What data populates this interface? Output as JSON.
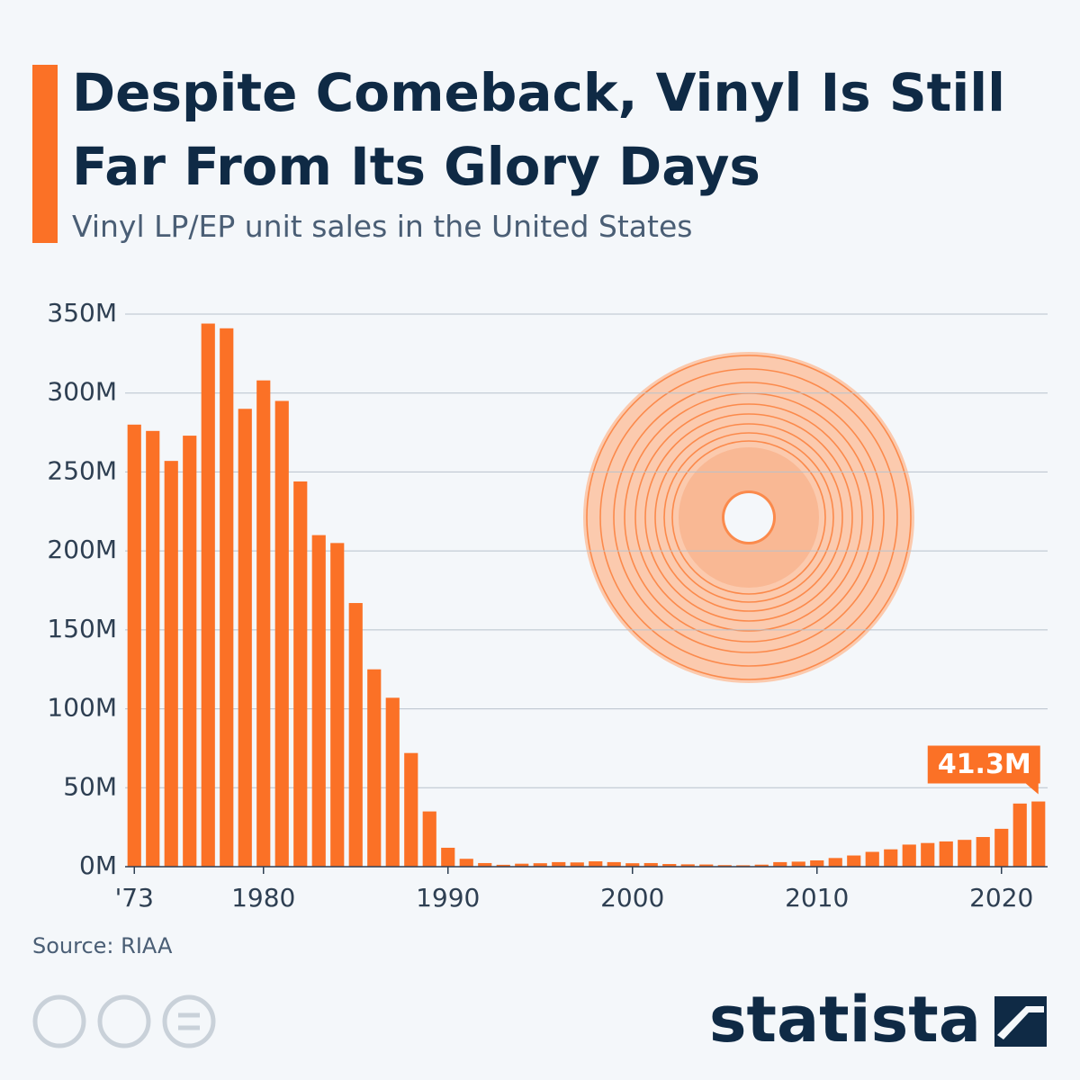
{
  "chart_data": {
    "type": "bar",
    "title": "Despite Comeback, Vinyl Is Still Far From Its Glory Days",
    "subtitle": "Vinyl LP/EP unit sales in the United States",
    "source": "Source: RIAA",
    "brand": "statista",
    "color": "#fb7126",
    "x": [
      1973,
      1974,
      1975,
      1976,
      1977,
      1978,
      1979,
      1980,
      1981,
      1982,
      1983,
      1984,
      1985,
      1986,
      1987,
      1988,
      1989,
      1990,
      1991,
      1992,
      1993,
      1994,
      1995,
      1996,
      1997,
      1998,
      1999,
      2000,
      2001,
      2002,
      2003,
      2004,
      2005,
      2006,
      2007,
      2008,
      2009,
      2010,
      2011,
      2012,
      2013,
      2014,
      2015,
      2016,
      2017,
      2018,
      2019,
      2020,
      2021,
      2022
    ],
    "values": [
      280,
      276,
      257,
      273,
      344,
      341,
      290,
      308,
      295,
      244,
      210,
      205,
      167,
      125,
      107,
      72,
      35,
      12,
      5,
      2.3,
      1.2,
      1.9,
      2.2,
      2.9,
      2.7,
      3.4,
      2.9,
      2.2,
      2.3,
      1.7,
      1.5,
      1.4,
      1.0,
      0.9,
      1.3,
      2.9,
      3.2,
      4.0,
      5.5,
      7.1,
      9.4,
      11,
      14,
      15,
      16,
      17,
      18.8,
      24,
      40,
      41.3
    ],
    "value_labels": [
      null,
      null,
      null,
      null,
      null,
      null,
      null,
      null,
      null,
      null,
      null,
      null,
      null,
      null,
      null,
      null,
      null,
      null,
      null,
      null,
      null,
      null,
      null,
      null,
      null,
      null,
      null,
      null,
      null,
      null,
      null,
      null,
      null,
      null,
      null,
      null,
      null,
      null,
      null,
      null,
      null,
      null,
      null,
      null,
      null,
      null,
      null,
      null,
      null,
      "41.3M"
    ],
    "xlim": [
      1972.5,
      2022.5
    ],
    "xticks": [
      {
        "value": 1973,
        "label": "'73"
      },
      1980,
      1990,
      2000,
      2010,
      2020
    ],
    "ylim": [
      0,
      350
    ],
    "yticks": [
      {
        "value": 0,
        "label": "0M"
      },
      {
        "value": 50,
        "label": "50M"
      },
      {
        "value": 100,
        "label": "100M"
      },
      {
        "value": 150,
        "label": "150M"
      },
      {
        "value": 200,
        "label": "200M"
      },
      {
        "value": 250,
        "label": "250M"
      },
      {
        "value": 300,
        "label": "300M"
      },
      {
        "value": 350,
        "label": "350M"
      }
    ],
    "grid": true
  }
}
